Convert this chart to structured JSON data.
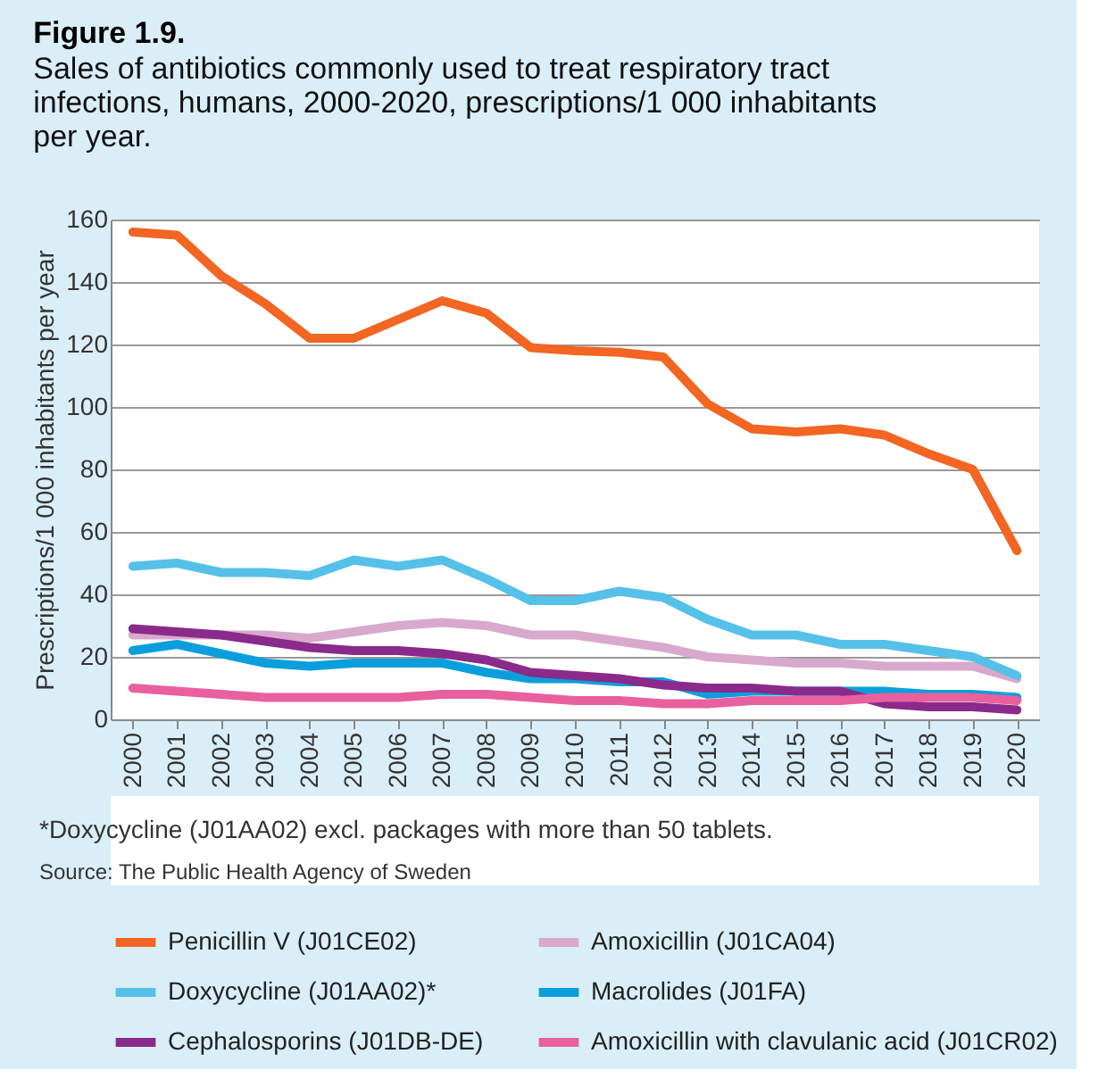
{
  "chart_data": {
    "type": "line",
    "title": "Figure 1.9.",
    "subtitle": "Sales of antibiotics commonly used to treat respiratory tract infections, humans, 2000-2020, prescriptions/1 000 inhabitants per year.",
    "ylabel": "Prescriptions/1 000 inhabitants per year",
    "categories": [
      "2000",
      "2001",
      "2002",
      "2003",
      "2004",
      "2005",
      "2006",
      "2007",
      "2008",
      "2009",
      "2010",
      "2011",
      "2012",
      "2013",
      "2014",
      "2015",
      "2016",
      "2017",
      "2018",
      "2019",
      "2020"
    ],
    "series": [
      {
        "name": "Penicillin V (J01CE02)",
        "color": "#f26522",
        "values": [
          156,
          155,
          142,
          133,
          122,
          122,
          128,
          134,
          130,
          119,
          118,
          117.5,
          116,
          101,
          93,
          92,
          93,
          91,
          85,
          80,
          54
        ]
      },
      {
        "name": "Amoxicillin (J01CA04)",
        "color": "#d8a9cc",
        "values": [
          27,
          27,
          27,
          27,
          26,
          28,
          30,
          31,
          30,
          27,
          27,
          25,
          23,
          20,
          19,
          18,
          18,
          17,
          17,
          17,
          13
        ]
      },
      {
        "name": "Doxycycline (J01AA02)*",
        "color": "#55c1e9",
        "values": [
          49,
          50,
          47,
          47,
          46,
          51,
          49,
          51,
          45,
          38,
          38,
          41,
          39,
          32,
          27,
          27,
          24,
          24,
          22,
          20,
          14
        ]
      },
      {
        "name": "Macrolides (J01FA)",
        "color": "#0a9fdc",
        "values": [
          22,
          24,
          21,
          18,
          17,
          18,
          18,
          18,
          15,
          13,
          13,
          12,
          12,
          8,
          9,
          9,
          9,
          9,
          8,
          8,
          7
        ]
      },
      {
        "name": "Cephalosporins (J01DB-DE)",
        "color": "#8a2a8a",
        "values": [
          29,
          28,
          27,
          25,
          23,
          22,
          22,
          21,
          19,
          15,
          14,
          13,
          11,
          10,
          10,
          9,
          9,
          5,
          4,
          4,
          3
        ]
      },
      {
        "name": "Amoxicillin with clavulanic acid (J01CR02)",
        "color": "#e8609e",
        "values": [
          10,
          9,
          8,
          7,
          7,
          7,
          7,
          8,
          8,
          7,
          6,
          6,
          5,
          5,
          6,
          6,
          6,
          7,
          7,
          7,
          6
        ]
      }
    ],
    "ylim": [
      0,
      160
    ],
    "yticks": [
      0,
      20,
      40,
      60,
      80,
      100,
      120,
      140,
      160
    ],
    "grid": "y",
    "legend": "bottom",
    "marker": "none",
    "line_style": "solid",
    "annotations": [
      "*Doxycycline (J01AA02) excl. packages with more than 50 tablets.",
      "Source: The Public Health Agency of Sweden"
    ]
  }
}
